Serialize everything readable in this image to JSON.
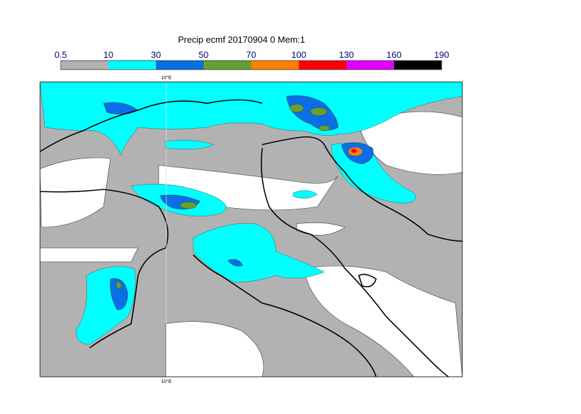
{
  "title": "Precip ecmf 20170904 0 Mem:1",
  "colorbar": {
    "ticks": [
      0.5,
      10,
      30,
      50,
      70,
      100,
      130,
      160,
      190
    ],
    "colors": [
      "#b2b2b2",
      "#00ffff",
      "#0a6fe6",
      "#66a032",
      "#ff8000",
      "#ff0000",
      "#e000ff",
      "#000000"
    ]
  },
  "map": {
    "lon_label_top": "10°E",
    "lon_label_bottom": "10°E"
  }
}
